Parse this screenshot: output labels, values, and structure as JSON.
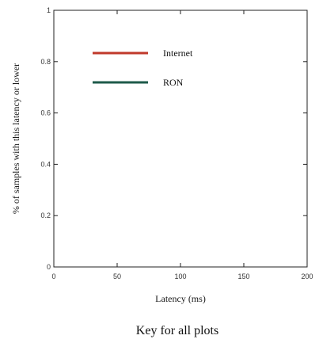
{
  "chart_data": {
    "type": "line",
    "title": "",
    "xlabel": "Latency (ms)",
    "ylabel": "% of samples with this latency or lower",
    "xlim": [
      0,
      200
    ],
    "ylim": [
      0,
      1
    ],
    "xticks": [
      0,
      50,
      100,
      150,
      200
    ],
    "xtick_labels": [
      "0",
      "50",
      "100",
      "150",
      "200"
    ],
    "yticks": [
      0,
      0.2,
      0.4,
      0.6,
      0.8,
      1
    ],
    "ytick_labels": [
      "0",
      "0.2",
      "0.4",
      "0.6",
      "0.8",
      "1"
    ],
    "grid": false,
    "legend_position": "top-left",
    "series": [
      {
        "name": "Internet",
        "color": "#c0392b",
        "x": [],
        "y": []
      },
      {
        "name": "RON",
        "color": "#1e5a4a",
        "x": [],
        "y": []
      }
    ]
  },
  "caption": "Key for all plots"
}
